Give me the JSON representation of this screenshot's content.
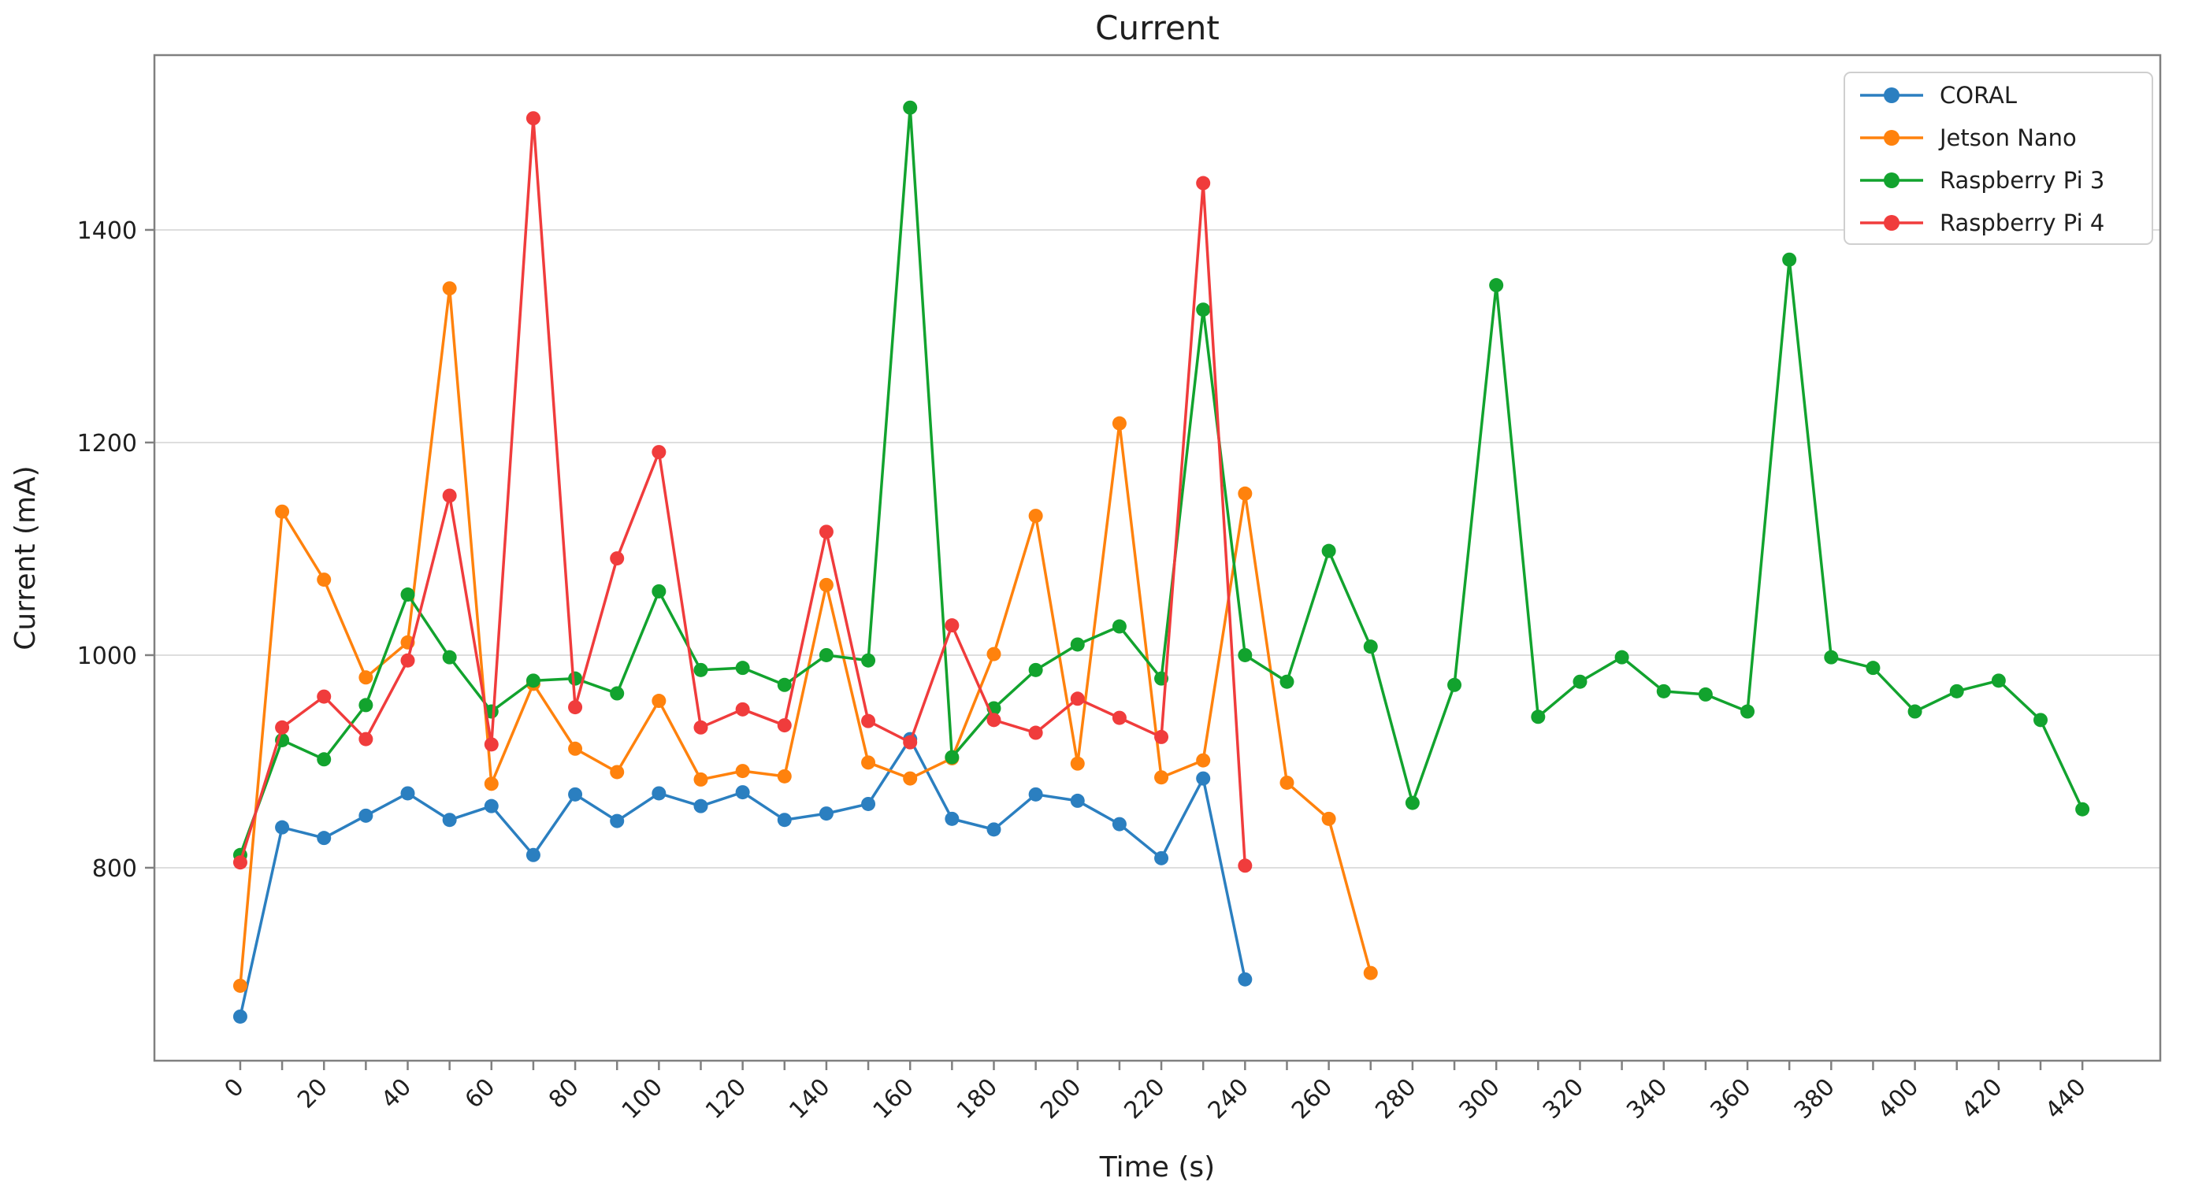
{
  "chart_data": {
    "type": "line",
    "title": "Current",
    "xlabel": "Time (s)",
    "ylabel": "Current (mA)",
    "grid": "horizontal-only",
    "grid_color": "#dedede",
    "spine_color": "#808080",
    "text_color": "#1f1f1f",
    "background_color": "#ffffff",
    "xlim": [
      -20.5,
      458.6
    ],
    "ylim": [
      618.5,
      1564.4
    ],
    "x_step_s": 10,
    "x_tick_minor_step": 10,
    "x_tick_labels": [
      0,
      20,
      40,
      60,
      80,
      100,
      120,
      140,
      160,
      180,
      200,
      220,
      240,
      260,
      280,
      300,
      320,
      340,
      360,
      380,
      400,
      420,
      440
    ],
    "x_tick_label_rotation_deg": -45,
    "y_ticks": [
      800,
      1000,
      1200,
      1400
    ],
    "legend_position": "upper-right",
    "series": [
      {
        "name": "CORAL",
        "color": "#2b7fc0",
        "x_start": 0,
        "x_step": 10,
        "values": [
          660,
          838,
          828,
          849,
          870,
          845,
          858,
          812,
          869,
          844,
          870,
          858,
          871,
          845,
          851,
          860,
          921,
          846,
          836,
          869,
          863,
          841,
          809,
          884,
          695
        ]
      },
      {
        "name": "Jetson Nano",
        "color": "#ff820d",
        "x_start": 0,
        "x_step": 10,
        "values": [
          689,
          1135,
          1071,
          979,
          1012,
          1345,
          879,
          973,
          912,
          890,
          957,
          883,
          891,
          886,
          1066,
          899,
          884,
          903,
          1001,
          1131,
          898,
          1218,
          885,
          901,
          1152,
          880,
          846,
          701
        ]
      },
      {
        "name": "Raspberry Pi 3",
        "color": "#12a32e",
        "x_start": 0,
        "x_step": 10,
        "values": [
          812,
          920,
          902,
          953,
          1057,
          998,
          947,
          976,
          978,
          964,
          1060,
          986,
          988,
          972,
          1000,
          995,
          1515,
          904,
          950,
          986,
          1010,
          1027,
          978,
          1325,
          1000,
          975,
          1098,
          1008,
          861,
          972,
          1348,
          942,
          975,
          998,
          966,
          963,
          947,
          1372,
          998,
          988,
          947,
          966,
          976,
          939,
          855
        ]
      },
      {
        "name": "Raspberry Pi 4",
        "color": "#f03c3c",
        "x_start": 0,
        "x_step": 10,
        "values": [
          805,
          932,
          961,
          921,
          995,
          1150,
          916,
          1505,
          951,
          1091,
          1191,
          932,
          949,
          934,
          1116,
          938,
          918,
          1028,
          939,
          927,
          959,
          941,
          923,
          1444,
          802
        ]
      }
    ]
  }
}
